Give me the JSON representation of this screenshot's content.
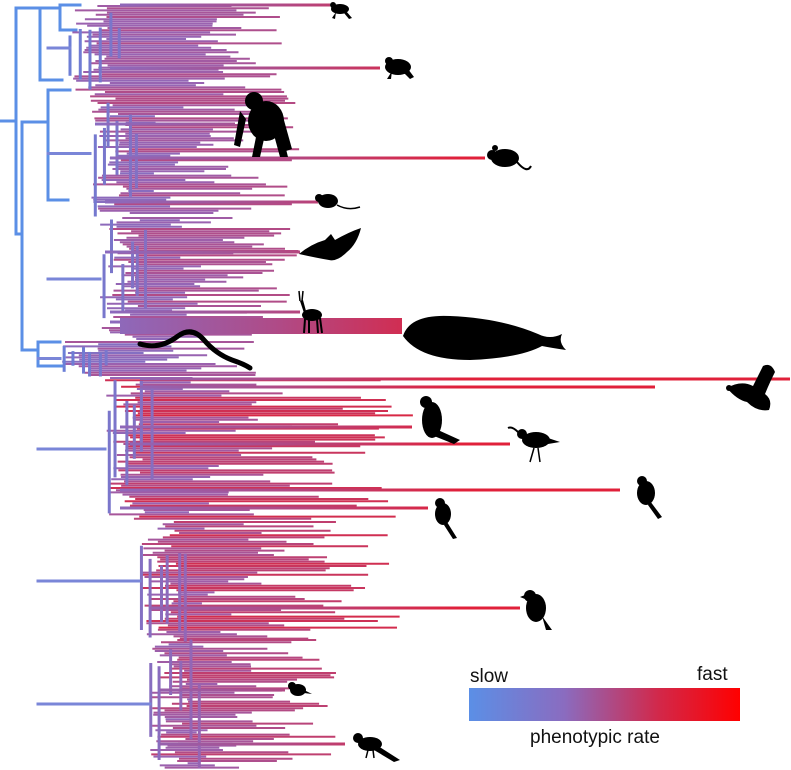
{
  "legend": {
    "slow_label": "slow",
    "fast_label": "fast",
    "title": "phenotypic rate",
    "color_slow": "#5b8fe6",
    "color_mid": "#8a6cc0",
    "color_fast": "#ff0000"
  },
  "silhouettes": [
    "frog-icon",
    "frog-icon",
    "chimpanzee-icon",
    "mouse-icon",
    "rat-icon",
    "bat-icon",
    "antelope-icon",
    "whale-icon",
    "snake-icon",
    "duck-icon",
    "parrot-icon",
    "shorebird-icon",
    "bird-icon",
    "bird-icon",
    "crow-icon",
    "finch-icon",
    "magpie-icon"
  ]
}
